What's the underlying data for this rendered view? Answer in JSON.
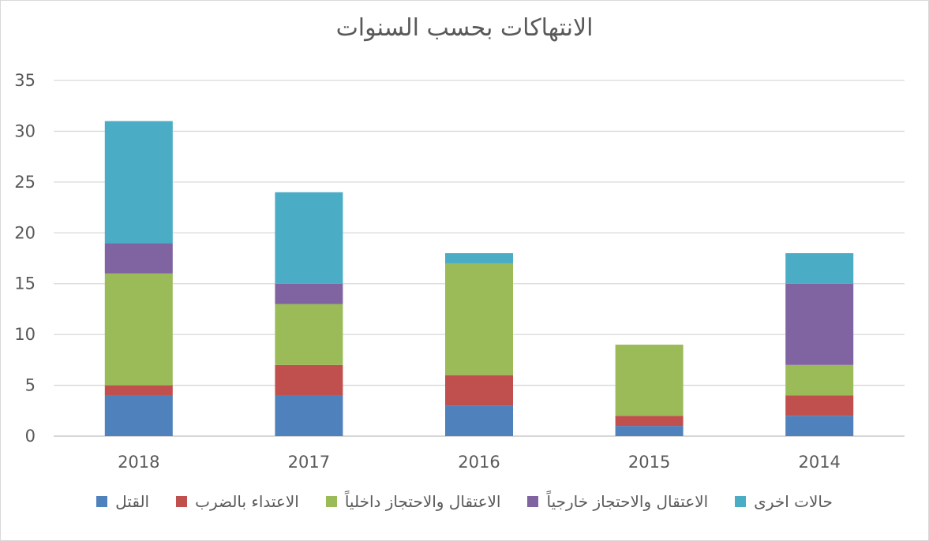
{
  "chart_data": {
    "type": "bar",
    "stacked": true,
    "title": "الانتهاكات بحسب السنوات",
    "xlabel": "",
    "ylabel": "",
    "categories": [
      "2018",
      "2017",
      "2016",
      "2015",
      "2014"
    ],
    "ylim": [
      0,
      35
    ],
    "yticks": [
      0,
      5,
      10,
      15,
      20,
      25,
      30,
      35
    ],
    "grid": true,
    "legend_position": "bottom",
    "series": [
      {
        "name": "القتل",
        "color": "#4f81bd",
        "values": [
          4,
          4,
          3,
          1,
          2
        ]
      },
      {
        "name": "الاعتداء بالضرب",
        "color": "#c0504d",
        "values": [
          1,
          3,
          3,
          1,
          2
        ]
      },
      {
        "name": "الاعتقال والاحتجاز داخلياً",
        "color": "#9bbb59",
        "values": [
          11,
          6,
          11,
          7,
          3
        ]
      },
      {
        "name": "الاعتقال والاحتجاز خارجياً",
        "color": "#8064a2",
        "values": [
          3,
          2,
          0,
          0,
          8
        ]
      },
      {
        "name": "حالات اخرى",
        "color": "#4bacc6",
        "values": [
          12,
          9,
          1,
          0,
          3
        ]
      }
    ]
  }
}
